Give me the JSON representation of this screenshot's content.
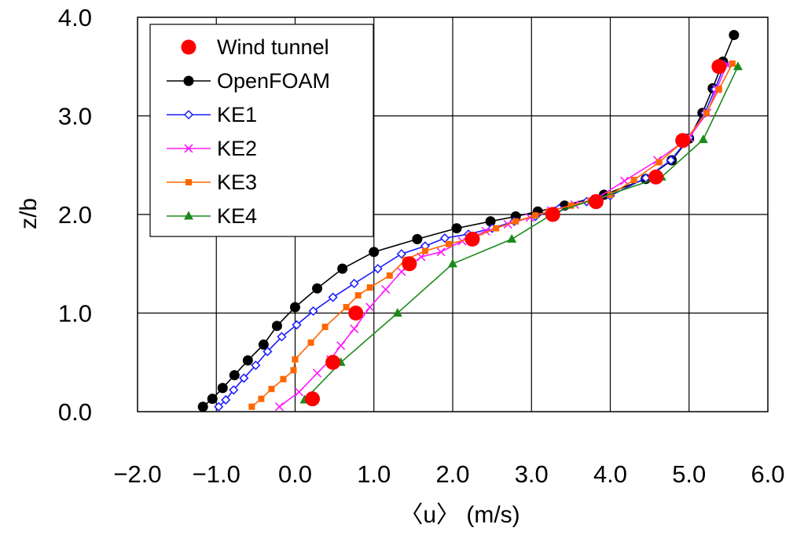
{
  "chart_data": {
    "type": "scatter",
    "title": "",
    "xlabel": "〈u〉 (m/s)",
    "ylabel": "z/b",
    "xlim": [
      -2.0,
      6.0
    ],
    "ylim": [
      0.0,
      4.0
    ],
    "x_ticks": [
      "−2.0",
      "−1.0",
      "0.0",
      "1.0",
      "2.0",
      "3.0",
      "4.0",
      "5.0",
      "6.0"
    ],
    "y_ticks": [
      "0.0",
      "1.0",
      "2.0",
      "3.0",
      "4.0"
    ],
    "grid": true,
    "legend_position": "top-left",
    "series": [
      {
        "name": "Wind tunnel",
        "color": "#ff0000",
        "marker": "big-circle",
        "line": false,
        "points": [
          [
            0.22,
            0.13
          ],
          [
            0.48,
            0.5
          ],
          [
            0.77,
            1.0
          ],
          [
            1.45,
            1.5
          ],
          [
            2.25,
            1.75
          ],
          [
            3.27,
            2.0
          ],
          [
            3.82,
            2.13
          ],
          [
            4.58,
            2.38
          ],
          [
            4.92,
            2.75
          ],
          [
            5.38,
            3.5
          ]
        ]
      },
      {
        "name": "OpenFOAM",
        "color": "#000000",
        "marker": "circle",
        "line": true,
        "points": [
          [
            -1.17,
            0.05
          ],
          [
            -1.05,
            0.13
          ],
          [
            -0.92,
            0.24
          ],
          [
            -0.77,
            0.37
          ],
          [
            -0.6,
            0.52
          ],
          [
            -0.4,
            0.68
          ],
          [
            -0.23,
            0.87
          ],
          [
            0.0,
            1.06
          ],
          [
            0.28,
            1.25
          ],
          [
            0.6,
            1.45
          ],
          [
            1.0,
            1.62
          ],
          [
            1.55,
            1.75
          ],
          [
            2.05,
            1.86
          ],
          [
            2.48,
            1.93
          ],
          [
            2.8,
            1.98
          ],
          [
            3.08,
            2.03
          ],
          [
            3.42,
            2.09
          ],
          [
            3.92,
            2.2
          ],
          [
            4.45,
            2.36
          ],
          [
            4.78,
            2.55
          ],
          [
            5.0,
            2.77
          ],
          [
            5.17,
            3.03
          ],
          [
            5.3,
            3.28
          ],
          [
            5.43,
            3.55
          ],
          [
            5.57,
            3.82
          ]
        ]
      },
      {
        "name": "KE1",
        "color": "#1a1aff",
        "marker": "diamond",
        "line": true,
        "points": [
          [
            -0.97,
            0.05
          ],
          [
            -0.88,
            0.12
          ],
          [
            -0.78,
            0.22
          ],
          [
            -0.65,
            0.34
          ],
          [
            -0.5,
            0.47
          ],
          [
            -0.35,
            0.61
          ],
          [
            -0.17,
            0.76
          ],
          [
            0.02,
            0.88
          ],
          [
            0.23,
            1.02
          ],
          [
            0.48,
            1.16
          ],
          [
            0.75,
            1.3
          ],
          [
            1.05,
            1.45
          ],
          [
            1.35,
            1.6
          ],
          [
            1.65,
            1.68
          ],
          [
            1.9,
            1.76
          ],
          [
            2.2,
            1.8
          ],
          [
            2.5,
            1.86
          ],
          [
            2.78,
            1.93
          ],
          [
            3.05,
            1.98
          ],
          [
            3.35,
            2.06
          ],
          [
            3.7,
            2.13
          ],
          [
            4.0,
            2.19
          ],
          [
            4.45,
            2.37
          ],
          [
            4.77,
            2.55
          ],
          [
            5.0,
            2.78
          ],
          [
            5.2,
            3.03
          ],
          [
            5.33,
            3.27
          ],
          [
            5.45,
            3.52
          ]
        ]
      },
      {
        "name": "KE2",
        "color": "#ff1aff",
        "marker": "x",
        "line": true,
        "points": [
          [
            -0.2,
            0.05
          ],
          [
            0.05,
            0.2
          ],
          [
            0.28,
            0.39
          ],
          [
            0.45,
            0.53
          ],
          [
            0.58,
            0.67
          ],
          [
            0.75,
            0.84
          ],
          [
            0.95,
            1.06
          ],
          [
            1.15,
            1.24
          ],
          [
            1.35,
            1.42
          ],
          [
            1.6,
            1.57
          ],
          [
            1.85,
            1.62
          ],
          [
            2.12,
            1.73
          ],
          [
            2.42,
            1.83
          ],
          [
            2.7,
            1.9
          ],
          [
            2.98,
            1.97
          ],
          [
            3.25,
            2.04
          ],
          [
            3.55,
            2.1
          ],
          [
            3.82,
            2.16
          ],
          [
            4.18,
            2.34
          ],
          [
            4.6,
            2.55
          ],
          [
            5.0,
            2.78
          ],
          [
            5.23,
            3.03
          ],
          [
            5.35,
            3.27
          ],
          [
            5.48,
            3.52
          ]
        ]
      },
      {
        "name": "KE3",
        "color": "#ff6600",
        "marker": "square",
        "line": true,
        "points": [
          [
            -0.55,
            0.05
          ],
          [
            -0.43,
            0.13
          ],
          [
            -0.3,
            0.23
          ],
          [
            -0.15,
            0.33
          ],
          [
            -0.02,
            0.42
          ],
          [
            0.0,
            0.53
          ],
          [
            0.2,
            0.7
          ],
          [
            0.38,
            0.86
          ],
          [
            0.65,
            1.06
          ],
          [
            0.8,
            1.18
          ],
          [
            0.95,
            1.26
          ],
          [
            1.2,
            1.38
          ],
          [
            1.4,
            1.54
          ],
          [
            1.65,
            1.63
          ],
          [
            1.95,
            1.7
          ],
          [
            2.25,
            1.76
          ],
          [
            2.55,
            1.86
          ],
          [
            2.8,
            1.93
          ],
          [
            3.05,
            1.99
          ],
          [
            3.22,
            2.03
          ],
          [
            3.5,
            2.09
          ],
          [
            3.75,
            2.14
          ],
          [
            4.0,
            2.2
          ],
          [
            4.3,
            2.35
          ],
          [
            4.62,
            2.53
          ],
          [
            4.97,
            2.77
          ],
          [
            5.22,
            3.03
          ],
          [
            5.38,
            3.27
          ],
          [
            5.55,
            3.53
          ]
        ]
      },
      {
        "name": "KE4",
        "color": "#1a8a1a",
        "marker": "triangle",
        "line": true,
        "points": [
          [
            0.12,
            0.12
          ],
          [
            0.58,
            0.5
          ],
          [
            1.3,
            1.0
          ],
          [
            2.0,
            1.5
          ],
          [
            2.75,
            1.75
          ],
          [
            3.3,
            2.02
          ],
          [
            4.65,
            2.38
          ],
          [
            5.18,
            2.76
          ],
          [
            5.62,
            3.5
          ]
        ]
      }
    ]
  }
}
